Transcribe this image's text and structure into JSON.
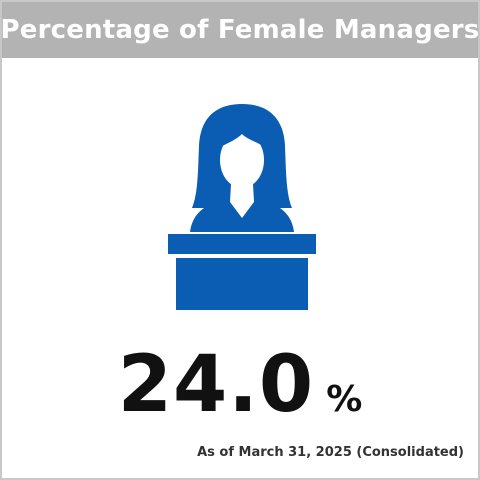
{
  "header": {
    "title": "Percentage of Female Managers"
  },
  "illustration": {
    "icon": "female-manager-at-desk-icon",
    "color": "#0a5db3"
  },
  "metric": {
    "value": "24.0",
    "unit": "%"
  },
  "footnote": "As of March 31, 2025 (Consolidated)",
  "colors": {
    "header_background": "#b3b3b3",
    "header_text": "#ffffff",
    "value_text": "#111111",
    "icon_blue": "#0a5db3"
  }
}
